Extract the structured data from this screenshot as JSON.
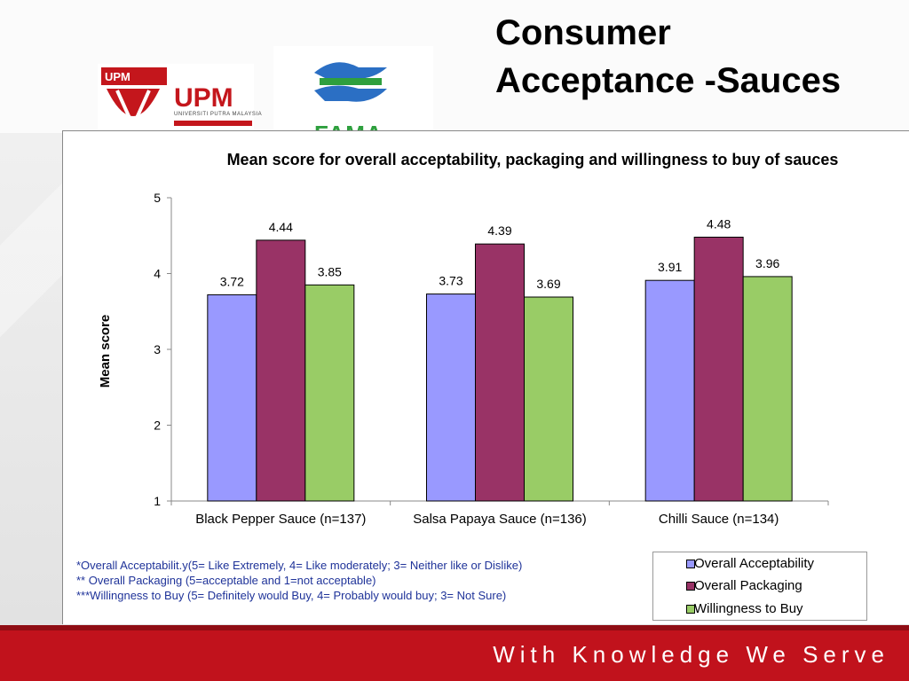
{
  "slide": {
    "title_line1": "Consumer",
    "title_line2": "Acceptance -Sauces",
    "slogan": "With Knowledge We Serve",
    "logos": {
      "upm_mark": "UPM",
      "upm_text": "UPM",
      "upm_subtext": "UNIVERSITI PUTRA MALAYSIA",
      "fama_text": "FAMA"
    }
  },
  "footnotes": [
    " *Overall Acceptabilit.y(5= Like Extremely, 4= Like  moderately; 3= Neither like or Dislike)",
    "** Overall Packaging (5=acceptable and 1=not acceptable)",
    "***Willingness to Buy (5= Definitely would Buy, 4= Probably would buy; 3= Not Sure)"
  ],
  "chart_data": {
    "type": "bar",
    "title": "Mean score for overall acceptability, packaging and willingness to buy of sauces",
    "xlabel": "",
    "ylabel": "Mean score",
    "ylim": [
      1,
      5
    ],
    "yticks": [
      "1",
      "2",
      "3",
      "4",
      "5"
    ],
    "categories": [
      "Black Pepper Sauce (n=137)",
      "Salsa Papaya Sauce (n=136)",
      "Chilli Sauce  (n=134)"
    ],
    "series": [
      {
        "name": "Overall Acceptability",
        "color": "#9999ff",
        "values": [
          3.72,
          3.73,
          3.91
        ],
        "labels": [
          "3.72",
          "3.73",
          "3.91"
        ]
      },
      {
        "name": "Overall Packaging",
        "color": "#993366",
        "values": [
          4.44,
          4.39,
          4.48
        ],
        "labels": [
          "4.44",
          "4.39",
          "4.48"
        ]
      },
      {
        "name": "Willingness to Buy",
        "color": "#99cc66",
        "values": [
          3.85,
          3.69,
          3.96
        ],
        "labels": [
          "3.85",
          "3.69",
          "3.96"
        ]
      }
    ],
    "grid": false,
    "legend_position": "bottom-right"
  }
}
